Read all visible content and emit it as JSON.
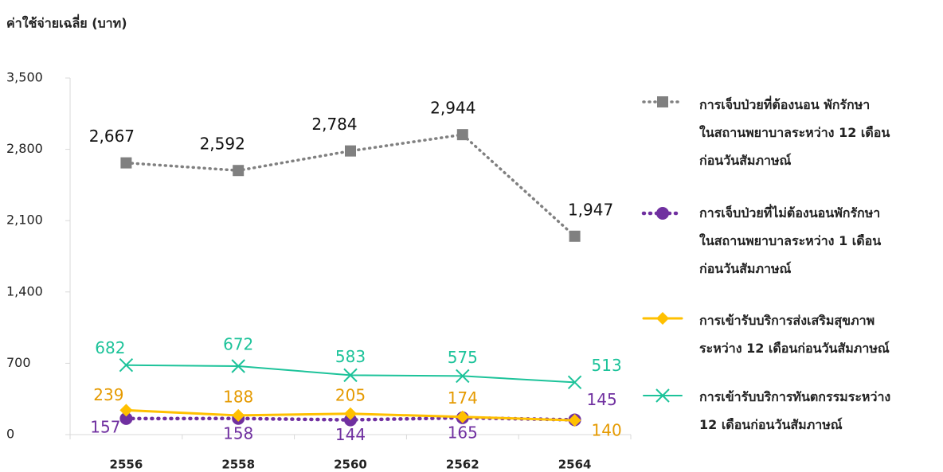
{
  "chart_data": {
    "type": "line",
    "y_label": "ค่าใช้จ่ายเฉลี่ย (บาท)",
    "categories": [
      "2556",
      "2558",
      "2560",
      "2562",
      "2564"
    ],
    "ylim": [
      0,
      3500
    ],
    "yticks": [
      0,
      700,
      {
        "value": 1400,
        "label": "1,400"
      },
      {
        "value": 2100,
        "label": "2,100"
      },
      {
        "value": 2800,
        "label": "2,800"
      },
      {
        "value": 3500,
        "label": "3,500"
      }
    ],
    "series": [
      {
        "name": "การเจ็บป่วยที่ต้องนอน พักรักษา\nในสถานพยาบาลระหว่าง 12 เดือน\nก่อนวันสัมภาษณ์",
        "color": "#808080",
        "values": [
          2667,
          2592,
          2784,
          2944,
          1947
        ],
        "value_labels": [
          "2,667",
          "2,592",
          "2,784",
          "2,944",
          "1,947"
        ]
      },
      {
        "name": "การเจ็บป่วยที่ไม่ต้องนอนพักรักษา\nในสถานพยาบาลระหว่าง  1 เดือน\nก่อนวันสัมภาษณ์",
        "color": "#7030a0",
        "values": [
          157,
          158,
          144,
          165,
          145
        ]
      },
      {
        "name": "การเข้ารับบริการส่งเสริมสุขภาพ\nระหว่าง  12 เดือนก่อนวันสัมภาษณ์",
        "color": "#ffc000",
        "values": [
          239,
          188,
          205,
          174,
          140
        ]
      },
      {
        "name": "การเข้ารับบริการทันตกรรมระหว่าง\n12 เดือนก่อนวันสัมภาษณ์",
        "color": "#1dc39a",
        "values": [
          682,
          672,
          583,
          575,
          513
        ]
      }
    ]
  }
}
